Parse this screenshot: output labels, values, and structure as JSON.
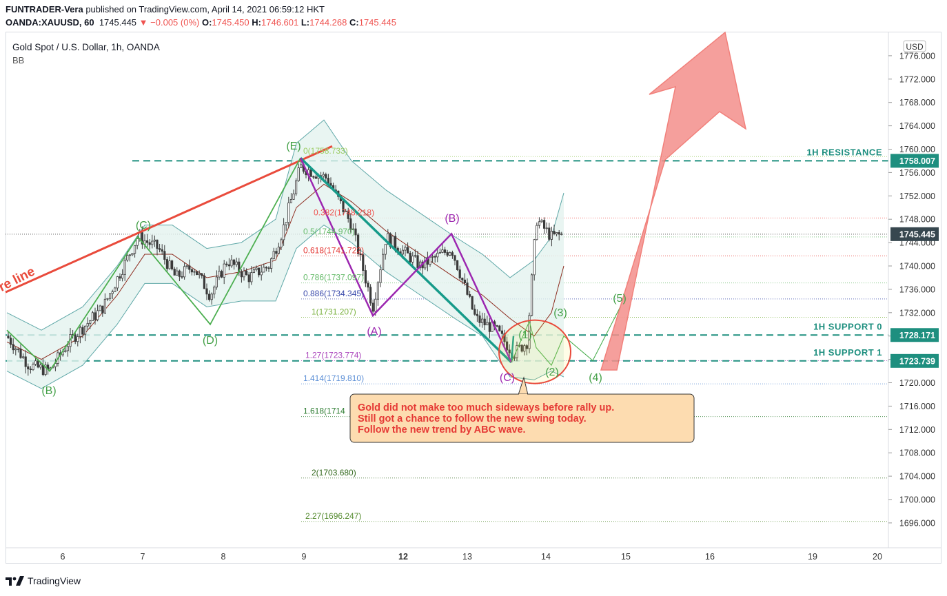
{
  "header": {
    "author": "FUNTRADER-Vera",
    "published_text": "published on TradingView.com, April 14, 2021 06:59:12 HKT",
    "symbol": "OANDA:XAUUSD, 60",
    "last": "1745.445",
    "change": "▼ −0.005 (0%)",
    "o_label": "O:",
    "o_value": "1745.450",
    "h_label": "H:",
    "h_value": "1746.601",
    "l_label": "L:",
    "l_value": "1744.268",
    "c_label": "C:",
    "c_value": "1745.445"
  },
  "legend": {
    "title": "Gold Spot / U.S. Dollar, 1h, OANDA",
    "indicator": "BB",
    "currency": "USD"
  },
  "footer": {
    "brand": "TradingView"
  },
  "chart_data": {
    "type": "candlestick",
    "y_ticks": [
      "1776.000",
      "1772.000",
      "1768.000",
      "1764.000",
      "1760.000",
      "1756.000",
      "1752.000",
      "1748.000",
      "1744.000",
      "1740.000",
      "1736.000",
      "1732.000",
      "1728.000",
      "1724.000",
      "1720.000",
      "1716.000",
      "1712.000",
      "1708.000",
      "1704.000",
      "1700.000",
      "1696.000"
    ],
    "x_ticks": [
      "6",
      "7",
      "8",
      "9",
      "12",
      "13",
      "14",
      "15",
      "16",
      "19",
      "20"
    ],
    "bold_x_ticks": [
      "12"
    ],
    "price_tags": [
      {
        "label": "1758.007",
        "value": 1758.007,
        "color": "#1e8f7f"
      },
      {
        "label": "1745.445",
        "value": 1745.445,
        "color": "#37474f"
      },
      {
        "label": "1728.171",
        "value": 1728.171,
        "color": "#1e8f7f"
      },
      {
        "label": "1723.739",
        "value": 1723.739,
        "color": "#1e8f7f"
      }
    ],
    "levels": [
      {
        "label": "1H RESISTANCE",
        "value": 1758.007
      },
      {
        "label": "1H SUPPORT 0",
        "value": 1728.171
      },
      {
        "label": "1H SUPPORT 1",
        "value": 1723.739
      }
    ],
    "fib_levels": [
      {
        "label": "0(1758.733)",
        "value": 1758.733,
        "color": "#9ccc65"
      },
      {
        "label": "0.382(1748.218)",
        "value": 1748.218,
        "color": "#ef5350"
      },
      {
        "label": "0.5(1744.970)",
        "value": 1744.97,
        "color": "#66bb6a"
      },
      {
        "label": "0.618(1741.722)",
        "value": 1741.722,
        "color": "#e53935"
      },
      {
        "label": "0.786(1737.097)",
        "value": 1737.097,
        "color": "#66bb6a"
      },
      {
        "label": "0.886(1734.345)",
        "value": 1734.345,
        "color": "#3949ab"
      },
      {
        "label": "1(1731.207)",
        "value": 1731.207,
        "color": "#7cb342"
      },
      {
        "label": "1.27(1723.774)",
        "value": 1723.774,
        "color": "#ab47bc"
      },
      {
        "label": "1.414(1719.810)",
        "value": 1719.81,
        "color": "#5c8fd6"
      },
      {
        "label": "1.618(1714",
        "value": 1714.2,
        "color": "#2e7d32"
      },
      {
        "label": "2(1703.680)",
        "value": 1703.68,
        "color": "#33691e"
      },
      {
        "label": "2.27(1696.247)",
        "value": 1696.247,
        "color": "#558b2f"
      }
    ],
    "wave_labels": [
      {
        "text": "(E)",
        "color": "#43a047"
      },
      {
        "text": "(C)",
        "color": "#43a047"
      },
      {
        "text": "(D)",
        "color": "#43a047"
      },
      {
        "text": "(B)",
        "color": "#43a047"
      },
      {
        "text": "(B)",
        "color": "#9c27b0"
      },
      {
        "text": "(A)",
        "color": "#9c27b0"
      },
      {
        "text": "(C)",
        "color": "#9c27b0"
      },
      {
        "text": "(1)",
        "color": "#43a047"
      },
      {
        "text": "(2)",
        "color": "#43a047"
      },
      {
        "text": "(3)",
        "color": "#43a047"
      },
      {
        "text": "(4)",
        "color": "#43a047"
      },
      {
        "text": "(5)",
        "color": "#43a047"
      }
    ],
    "trendline_label": "re line",
    "callout": [
      "Gold did not make too much sideways before rally up.",
      "Still got a chance to follow the new swing today.",
      "Follow the new trend by ABC wave."
    ],
    "colors": {
      "up": "#26a69a",
      "down": "#ef5350",
      "candle": "#3a3a3a",
      "bb_fill": "#e3f2ef",
      "bb_band": "#5fa8a8",
      "bb_basis": "#8d2b1e",
      "level": "#1e8f7f",
      "arrow": "#f48f8b"
    }
  }
}
